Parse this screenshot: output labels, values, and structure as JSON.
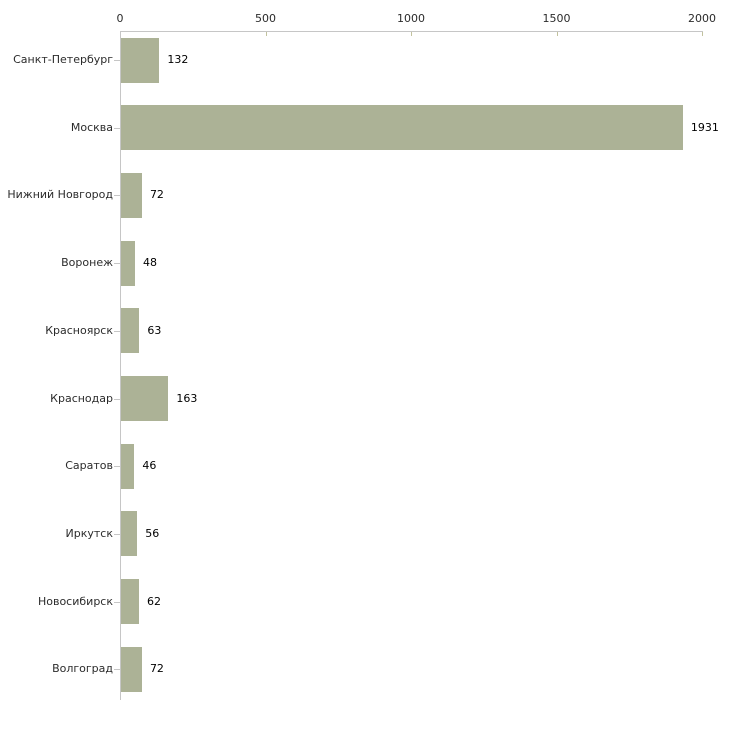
{
  "chart_data": {
    "type": "bar",
    "orientation": "horizontal",
    "title": "",
    "xlabel": "",
    "ylabel": "",
    "categories": [
      "Санкт-Петербург",
      "Москва",
      "Нижний Новгород",
      "Воронеж",
      "Красноярск",
      "Краснодар",
      "Саратов",
      "Иркутск",
      "Новосибирск",
      "Волгоград"
    ],
    "values": [
      132,
      1931,
      72,
      48,
      63,
      163,
      46,
      56,
      62,
      72
    ],
    "value_labels": [
      "132",
      "1931",
      "72",
      "48",
      "63",
      "163",
      "46",
      "56",
      "62",
      "72"
    ],
    "x_ticks": [
      0,
      500,
      1000,
      1500,
      2000
    ],
    "x_tick_labels": [
      "0",
      "500",
      "1000",
      "1500",
      "2000"
    ],
    "xlim": [
      0,
      2000
    ],
    "grid": "off",
    "legend": "none",
    "axis_position": "top-left",
    "colors": {
      "bar_fill": "#acb296",
      "axis_line": "#c6c6c6",
      "x_tick_mark": "#c2c29e",
      "text": "#2b2b2b",
      "background": "#ffffff"
    }
  }
}
